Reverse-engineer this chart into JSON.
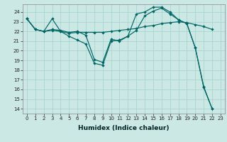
{
  "xlabel": "Humidex (Indice chaleur)",
  "bg_color": "#cce8e4",
  "grid_color": "#aad4d0",
  "line_color": "#006666",
  "xlim": [
    -0.5,
    23.5
  ],
  "ylim": [
    13.5,
    24.8
  ],
  "yticks": [
    14,
    15,
    16,
    17,
    18,
    19,
    20,
    21,
    22,
    23,
    24
  ],
  "xticks": [
    0,
    1,
    2,
    3,
    4,
    5,
    6,
    7,
    8,
    9,
    10,
    11,
    12,
    13,
    14,
    15,
    16,
    17,
    18,
    19,
    20,
    21,
    22,
    23
  ],
  "series1_x": [
    0,
    1,
    2,
    3,
    4,
    5,
    6,
    7,
    8,
    9,
    10,
    11,
    12,
    13,
    14,
    15,
    16,
    17,
    18,
    19,
    20,
    21,
    22
  ],
  "series1_y": [
    23.3,
    22.2,
    22.0,
    23.3,
    22.0,
    21.5,
    21.1,
    20.7,
    18.7,
    18.5,
    21.0,
    21.1,
    21.5,
    23.8,
    24.0,
    24.5,
    24.5,
    24.0,
    23.2,
    22.8,
    20.3,
    16.3,
    14.0
  ],
  "series2_x": [
    0,
    1,
    2,
    3,
    4,
    5,
    6,
    7,
    8,
    9,
    10,
    11,
    12,
    13,
    14,
    15,
    16,
    17,
    18,
    19,
    20,
    21,
    22
  ],
  "series2_y": [
    23.3,
    22.2,
    22.0,
    22.1,
    22.0,
    21.8,
    21.9,
    21.9,
    21.9,
    21.9,
    22.0,
    22.1,
    22.2,
    22.3,
    22.5,
    22.6,
    22.8,
    22.9,
    23.0,
    22.9,
    22.7,
    22.5,
    22.2
  ],
  "series3_x": [
    0,
    1,
    2,
    3,
    4,
    5,
    6,
    7,
    8,
    9,
    10,
    11,
    12,
    13,
    14,
    15,
    16,
    17,
    18,
    19,
    20,
    21,
    22
  ],
  "series3_y": [
    23.3,
    22.2,
    22.0,
    22.2,
    22.1,
    21.9,
    22.0,
    21.6,
    19.1,
    18.8,
    21.2,
    21.0,
    21.5,
    22.1,
    23.6,
    24.1,
    24.4,
    23.8,
    23.2,
    22.8,
    20.3,
    16.2,
    14.0
  ],
  "xlabel_fontsize": 6.5,
  "tick_fontsize": 5.0
}
